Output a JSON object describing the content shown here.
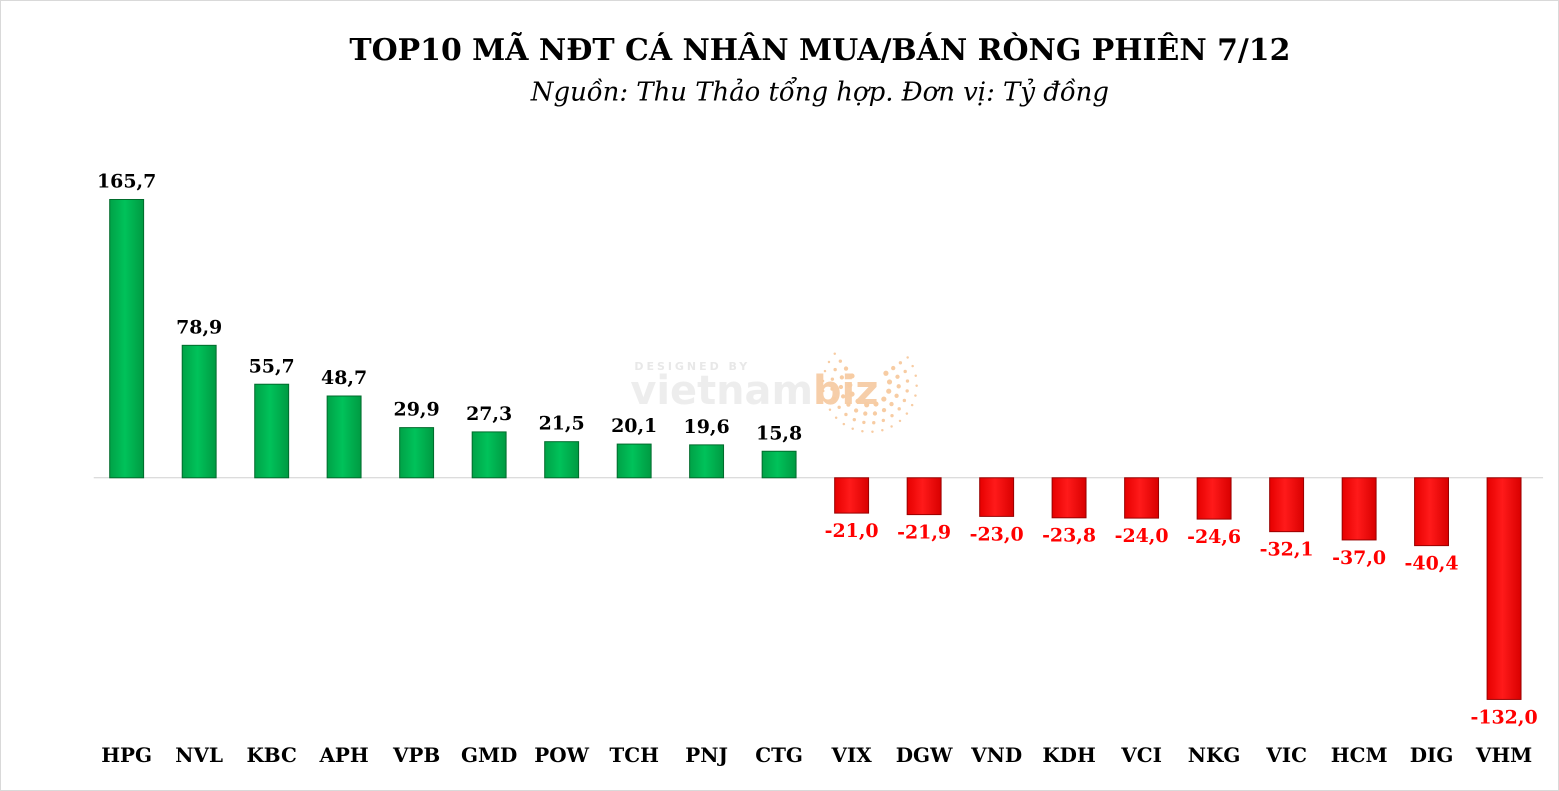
{
  "chart_data": {
    "type": "bar",
    "title": "TOP10 MÃ NĐT CÁ NHÂN MUA/BÁN RÒNG PHIÊN 7/12",
    "subtitle": "Nguồn: Thu Thảo tổng hợp. Đơn vị: Tỷ đồng",
    "categories": [
      "HPG",
      "NVL",
      "KBC",
      "APH",
      "VPB",
      "GMD",
      "POW",
      "TCH",
      "PNJ",
      "CTG",
      "VIX",
      "DGW",
      "VND",
      "KDH",
      "VCI",
      "NKG",
      "VIC",
      "HCM",
      "DIG",
      "VHM"
    ],
    "values": [
      165.7,
      78.9,
      55.7,
      48.7,
      29.9,
      27.3,
      21.5,
      20.1,
      19.6,
      15.8,
      -21.0,
      -21.9,
      -23.0,
      -23.8,
      -24.0,
      -24.6,
      -32.1,
      -37.0,
      -40.4,
      -132.0
    ],
    "value_labels": [
      "165,7",
      "78,9",
      "55,7",
      "48,7",
      "29,9",
      "27,3",
      "21,5",
      "20,1",
      "19,6",
      "15,8",
      "-21,0",
      "-21,9",
      "-23,0",
      "-23,8",
      "-24,0",
      "-24,6",
      "-32,1",
      "-37,0",
      "-40,4",
      "-132,0"
    ],
    "grid": false,
    "legend": "none",
    "colors": {
      "positive": "#00b050",
      "negative": "#ff0000"
    }
  },
  "watermark": {
    "top_text": "DESIGNED BY",
    "brand_main": "vietnam",
    "brand_accent": "biz"
  }
}
